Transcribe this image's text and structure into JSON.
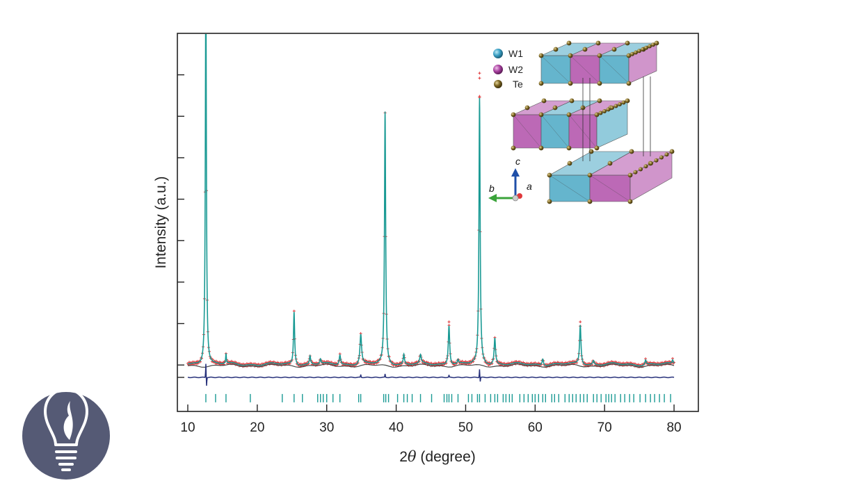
{
  "chart_data": {
    "type": "line",
    "title": "",
    "xlabel_prefix": "2",
    "xlabel_symbol": "θ",
    "xlabel_suffix": " (degree)",
    "ylabel": "Intensity (a.u.)",
    "xlim": [
      8.5,
      83.5
    ],
    "xticks": [
      10,
      20,
      30,
      40,
      50,
      60,
      70,
      80
    ],
    "ylim": [
      -0.14,
      1.0
    ],
    "y_minor_ticks": [
      0.0,
      0.125,
      0.25,
      0.375,
      0.5,
      0.625,
      0.75,
      0.875
    ],
    "y_ticks_labeled": false,
    "grid": false,
    "x_range": [
      10,
      80
    ],
    "peaks": [
      {
        "x": 12.6,
        "y": 1.18,
        "w": 0.09
      },
      {
        "x": 15.5,
        "y": 0.03,
        "w": 0.06
      },
      {
        "x": 25.3,
        "y": 0.16,
        "w": 0.1
      },
      {
        "x": 27.6,
        "y": 0.025,
        "w": 0.1
      },
      {
        "x": 29.1,
        "y": 0.015,
        "w": 0.1
      },
      {
        "x": 31.9,
        "y": 0.03,
        "w": 0.12
      },
      {
        "x": 34.9,
        "y": 0.09,
        "w": 0.14
      },
      {
        "x": 38.4,
        "y": 0.76,
        "w": 0.1
      },
      {
        "x": 41.1,
        "y": 0.03,
        "w": 0.1
      },
      {
        "x": 43.5,
        "y": 0.025,
        "w": 0.12
      },
      {
        "x": 47.6,
        "y": 0.12,
        "w": 0.12
      },
      {
        "x": 48.9,
        "y": 0.012,
        "w": 0.1
      },
      {
        "x": 52.0,
        "y": 0.8,
        "w": 0.1
      },
      {
        "x": 54.2,
        "y": 0.08,
        "w": 0.12
      },
      {
        "x": 61.1,
        "y": 0.02,
        "w": 0.12
      },
      {
        "x": 66.5,
        "y": 0.12,
        "w": 0.12
      },
      {
        "x": 68.4,
        "y": 0.012,
        "w": 0.12
      },
      {
        "x": 75.9,
        "y": 0.015,
        "w": 0.12
      },
      {
        "x": 79.8,
        "y": 0.012,
        "w": 0.1
      }
    ],
    "observed_outliers": [
      {
        "x": 52.0,
        "y": 0.88
      },
      {
        "x": 52.0,
        "y": 0.865
      },
      {
        "x": 52.0,
        "y": 0.81
      },
      {
        "x": 47.6,
        "y": 0.13
      },
      {
        "x": 66.5,
        "y": 0.13
      }
    ],
    "bragg_positions": [
      12.6,
      14.0,
      15.5,
      19.0,
      23.6,
      25.3,
      26.5,
      28.7,
      29.1,
      29.5,
      30.0,
      30.9,
      31.9,
      34.6,
      34.9,
      38.2,
      38.5,
      38.9,
      40.2,
      41.1,
      41.6,
      42.3,
      43.5,
      45.1,
      46.9,
      47.3,
      47.6,
      48.0,
      48.9,
      50.4,
      50.9,
      51.7,
      52.0,
      52.8,
      53.6,
      54.2,
      54.6,
      55.4,
      55.8,
      56.3,
      56.7,
      57.8,
      58.4,
      59.0,
      59.6,
      60.0,
      60.5,
      61.1,
      61.5,
      62.4,
      62.8,
      63.4,
      64.3,
      64.9,
      65.4,
      65.9,
      66.5,
      67.0,
      67.5,
      68.4,
      68.9,
      69.5,
      70.2,
      70.6,
      71.0,
      71.5,
      72.3,
      72.9,
      73.6,
      74.2,
      75.1,
      75.9,
      76.6,
      77.2,
      77.9,
      78.6,
      79.5
    ],
    "difference_spikes": [
      {
        "x": 12.6,
        "y": 0.05
      },
      {
        "x": 12.7,
        "y": -0.03
      },
      {
        "x": 34.9,
        "y": 0.01
      },
      {
        "x": 38.4,
        "y": 0.012
      },
      {
        "x": 47.6,
        "y": 0.008
      },
      {
        "x": 52.0,
        "y": 0.03
      },
      {
        "x": 52.1,
        "y": -0.015
      }
    ],
    "series": [
      {
        "role": "observed",
        "color": "#e0383b"
      },
      {
        "role": "calculated",
        "color": "#1a9a94"
      },
      {
        "role": "background",
        "color": "#444444"
      },
      {
        "role": "bragg",
        "color": "#1a9a94"
      },
      {
        "role": "difference",
        "color": "#26307a"
      }
    ]
  },
  "inset": {
    "legend": [
      {
        "label": "W1",
        "color": "#3a9fc4"
      },
      {
        "label": "W2",
        "color": "#a8409f"
      },
      {
        "label": "Te",
        "color": "#7a6420"
      }
    ],
    "axes": {
      "c": "c",
      "b": "b",
      "a": "a"
    },
    "colors": {
      "w1": "#4aa8c4",
      "w2": "#b04fa9",
      "te": "#7a6420",
      "c_axis": "#1f4fa8",
      "b_axis": "#3aa33a",
      "a_axis": "#e0383b"
    }
  },
  "logo": {
    "bg": "#555a75",
    "fg": "#ffffff",
    "name": "lightbulb-icon"
  }
}
